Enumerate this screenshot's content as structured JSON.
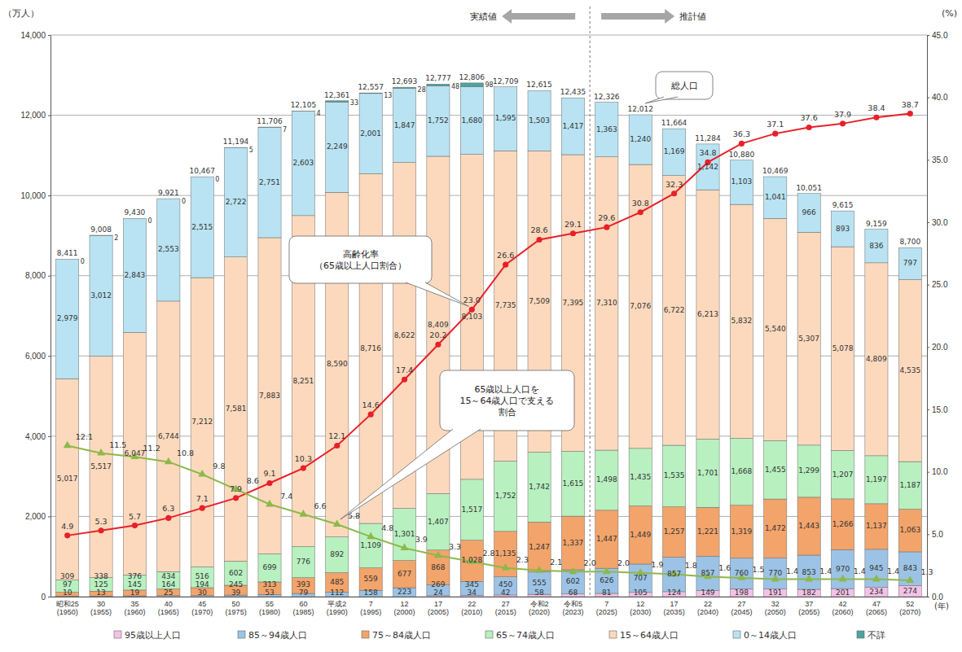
{
  "chart_data": {
    "type": "bar",
    "stacked": true,
    "data_labels": true,
    "grid": true,
    "legend": "bottom",
    "ylabel": "（万人）",
    "y2label": "(%)",
    "xlabel": "(年)",
    "categories": [
      "昭和25\n(1950)",
      "30\n(1955)",
      "35\n(1960)",
      "40\n(1965)",
      "45\n(1970)",
      "50\n(1975)",
      "55\n(1980)",
      "60\n(1985)",
      "平成2\n(1990)",
      "7\n(1995)",
      "12\n(2000)",
      "17\n(2005)",
      "22\n(2010)",
      "27\n(2015)",
      "令和2\n(2020)",
      "令和5\n(2023)",
      "7\n(2025)",
      "12\n(2030)",
      "17\n(2035)",
      "22\n(2040)",
      "27\n(2045)",
      "32\n(2050)",
      "37\n(2055)",
      "42\n(2060)",
      "47\n(2065)",
      "52\n(2070)"
    ],
    "periods": [
      {
        "label": "実績値",
        "from": "昭和25\n(1950)",
        "to": "令和5\n(2023)"
      },
      {
        "label": "推計値",
        "from": "7\n(2025)",
        "to": "52\n(2070)"
      }
    ],
    "series": [
      {
        "name": "95歳以上人口",
        "type": "bar",
        "color": "#f4c2e6",
        "values": [
          null,
          null,
          null,
          null,
          null,
          null,
          null,
          null,
          null,
          null,
          null,
          24,
          34,
          42,
          58,
          68,
          81,
          105,
          124,
          149,
          198,
          191,
          182,
          201,
          234,
          274
        ]
      },
      {
        "name": "85～94歳人口",
        "type": "bar",
        "color": "#9cc3e5",
        "values": [
          10,
          13,
          19,
          25,
          30,
          39,
          53,
          79,
          112,
          158,
          223,
          269,
          345,
          450,
          555,
          602,
          626,
          707,
          857,
          857,
          760,
          770,
          853,
          970,
          945,
          843
        ]
      },
      {
        "name": "75～84歳人口",
        "type": "bar",
        "color": "#f2a46b",
        "values": [
          97,
          125,
          145,
          164,
          194,
          245,
          313,
          393,
          485,
          559,
          677,
          868,
          1028,
          1135,
          1247,
          1337,
          1447,
          1449,
          1257,
          1221,
          1319,
          1472,
          1443,
          1266,
          1137,
          1063
        ],
        "value_labels": [
          "97",
          "125",
          "145",
          "164",
          "194",
          "245",
          "313",
          "393",
          "485",
          "559",
          "677",
          "868",
          "1,028",
          "1,135",
          "1,247",
          "1,337",
          "1,447",
          "1,449",
          "1,257",
          "1,221",
          "1,319",
          "1,472",
          "1,443",
          "1,266",
          "1,137",
          "1,063"
        ]
      },
      {
        "name": "65～74歳人口",
        "type": "bar",
        "color": "#b8f0c0",
        "values": [
          309,
          338,
          376,
          434,
          516,
          602,
          699,
          776,
          892,
          1109,
          1301,
          1407,
          1517,
          1752,
          1742,
          1615,
          1498,
          1435,
          1535,
          1701,
          1668,
          1455,
          1299,
          1207,
          1197,
          1187
        ],
        "value_labels": [
          "309",
          "338",
          "376",
          "434",
          "516",
          "602",
          "699",
          "776",
          "892",
          "1,109",
          "1,301",
          "1,407",
          "1,517",
          "1,752",
          "1,742",
          "1,615",
          "1,498",
          "1,435",
          "1,535",
          "1,701",
          "1,668",
          "1,455",
          "1,299",
          "1,207",
          "1,197",
          "1,187"
        ]
      },
      {
        "name": "15～64歳人口",
        "type": "bar",
        "color": "#fcd9bd",
        "values": [
          5017,
          5517,
          6047,
          6744,
          7212,
          7581,
          7883,
          8251,
          8590,
          8716,
          8622,
          8409,
          8103,
          7735,
          7509,
          7395,
          7310,
          7076,
          6722,
          6213,
          5832,
          5540,
          5307,
          5078,
          4809,
          4535
        ],
        "value_labels": [
          "5,017",
          "5,517",
          "6,047",
          "6,744",
          "7,212",
          "7,581",
          "7,883",
          "8,251",
          "8,590",
          "8,716",
          "8,622",
          "8,409",
          "8,103",
          "7,735",
          "7,509",
          "7,395",
          "7,310",
          "7,076",
          "6,722",
          "6,213",
          "5,832",
          "5,540",
          "5,307",
          "5,078",
          "4,809",
          "4,535"
        ]
      },
      {
        "name": "0～14歳人口",
        "type": "bar",
        "color": "#b9e3f2",
        "values": [
          2979,
          3012,
          2843,
          2553,
          2515,
          2722,
          2751,
          2603,
          2249,
          2001,
          1847,
          1752,
          1680,
          1595,
          1503,
          1417,
          1363,
          1240,
          1169,
          1142,
          1103,
          1041,
          966,
          893,
          836,
          797
        ],
        "value_labels": [
          "2,979",
          "3,012",
          "2,843",
          "2,553",
          "2,515",
          "2,722",
          "2,751",
          "2,603",
          "2,249",
          "2,001",
          "1,847",
          "1,752",
          "1,680",
          "1,595",
          "1,503",
          "1,417",
          "1,363",
          "1,240",
          "1,169",
          "1,142",
          "1,103",
          "1,041",
          "966",
          "893",
          "836",
          "797"
        ]
      },
      {
        "name": "不詳",
        "type": "bar",
        "color": "#4fa3a0",
        "values": [
          0,
          2,
          0,
          0,
          0,
          5,
          7,
          4,
          33,
          13,
          28,
          48,
          98,
          null,
          null,
          null,
          null,
          null,
          null,
          null,
          null,
          null,
          null,
          null,
          null,
          null
        ]
      },
      {
        "name": "高齢化率\n（65歳以上人口割合）",
        "type": "line",
        "axis": "y2",
        "color": "#e8202a",
        "marker": "circle",
        "values": [
          4.9,
          5.3,
          5.7,
          6.3,
          7.1,
          7.9,
          9.1,
          10.3,
          12.1,
          14.6,
          17.4,
          20.2,
          23.0,
          26.6,
          28.6,
          29.1,
          29.6,
          30.8,
          32.3,
          34.8,
          36.3,
          37.1,
          37.6,
          37.9,
          38.4,
          38.7
        ],
        "value_labels": [
          "4.9",
          "5.3",
          "5.7",
          "6.3",
          "7.1",
          "7.9",
          "9.1",
          "10.3",
          "12.1",
          "14.6",
          "17.4",
          "20.2",
          "23.0",
          "26.6",
          "28.6",
          "29.1",
          "29.6",
          "30.8",
          "32.3",
          "34.8",
          "36.3",
          "37.1",
          "37.6",
          "37.9",
          "38.4",
          "38.7"
        ]
      },
      {
        "name": "65歳以上人口を\n15～64歳人口で支える\n割合",
        "type": "line",
        "axis": "y2",
        "color": "#8db84a",
        "marker": "triangle",
        "values": [
          12.1,
          11.5,
          11.2,
          10.8,
          9.8,
          8.6,
          7.4,
          6.6,
          5.8,
          4.8,
          3.9,
          3.3,
          2.8,
          2.3,
          2.1,
          2.0,
          2.0,
          1.9,
          1.8,
          1.6,
          1.5,
          1.4,
          1.4,
          1.4,
          1.4,
          1.3
        ],
        "value_labels": [
          "12.1",
          "11.5",
          "11.2",
          "10.8",
          "9.8",
          "8.6",
          "7.4",
          "6.6",
          "5.8",
          "4.8",
          "3.9",
          "3.3",
          "2.8",
          "2.3",
          "2.1",
          "2.0",
          "2.0",
          "1.9",
          "1.8",
          "1.6",
          "1.5",
          "1.4",
          "1.4",
          "1.4",
          "1.4",
          "1.3"
        ]
      }
    ],
    "totals": {
      "name": "総人口",
      "values": [
        8411,
        9008,
        9430,
        9921,
        10467,
        11194,
        11706,
        12105,
        12361,
        12557,
        12693,
        12777,
        12806,
        12709,
        12615,
        12435,
        12326,
        12012,
        11664,
        11284,
        10880,
        10469,
        10051,
        9615,
        9159,
        8700
      ],
      "value_labels": [
        "8,411",
        "9,008",
        "9,430",
        "9,921",
        "10,467",
        "11,194",
        "11,706",
        "12,105",
        "12,361",
        "12,557",
        "12,693",
        "12,777",
        "12,806",
        "12,709",
        "12,615",
        "12,435",
        "12,326",
        "12,012",
        "11,664",
        "11,284",
        "10,880",
        "10,469",
        "10,051",
        "9,615",
        "9,159",
        "8,700"
      ]
    },
    "ylim": [
      0,
      14000
    ],
    "yticks": [
      0,
      {
        "value": 2000,
        "label": "2,000"
      },
      {
        "value": 4000,
        "label": "4,000"
      },
      {
        "value": 6000,
        "label": "6,000"
      },
      {
        "value": 8000,
        "label": "8,000"
      },
      {
        "value": 10000,
        "label": "10,000"
      },
      {
        "value": 12000,
        "label": "12,000"
      },
      {
        "value": 14000,
        "label": "14,000"
      }
    ],
    "y2lim": [
      0,
      45
    ],
    "y2ticks": [
      {
        "value": 0,
        "label": "0.0"
      },
      {
        "value": 5,
        "label": "5.0"
      },
      {
        "value": 10,
        "label": "10.0"
      },
      {
        "value": 15,
        "label": "15.0"
      },
      {
        "value": 20,
        "label": "20.0"
      },
      {
        "value": 25,
        "label": "25.0"
      },
      {
        "value": 30,
        "label": "30.0"
      },
      {
        "value": 35,
        "label": "35.0"
      },
      {
        "value": 40,
        "label": "40.0"
      },
      {
        "value": 45,
        "label": "45.0"
      }
    ]
  }
}
